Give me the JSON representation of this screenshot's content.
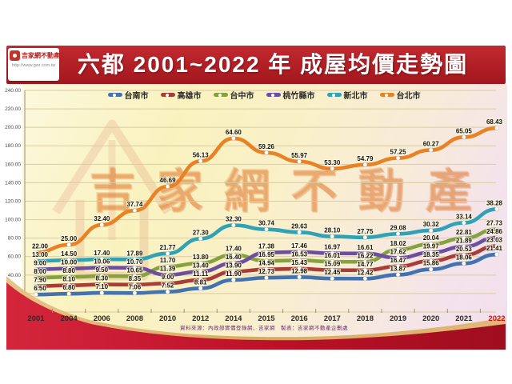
{
  "logo": {
    "brand": "吉家網不動產",
    "url": "http://www.gwr.com.tw"
  },
  "header": {
    "title": "六都 2001~2022 年 成屋均價走勢圖"
  },
  "watermark": {
    "text": "吉家網不動產"
  },
  "footer": {
    "source": "資料來源：內政部實價登錄網、吉家網　製表：吉家網不動產企劃處"
  },
  "chart_data": {
    "type": "line",
    "title": "六都 2001~2022 年 成屋均價走勢圖",
    "xlabel": "",
    "ylabel": "",
    "x": [
      2001,
      2004,
      2006,
      2008,
      2010,
      2012,
      2014,
      2015,
      2016,
      2017,
      2018,
      2019,
      2020,
      2021,
      2022
    ],
    "x_highlight": 2022,
    "x_highlight_color": "#CC1111",
    "y_axis": {
      "min": 0,
      "max": 240,
      "step": 20,
      "tick_format_decimals": 2
    },
    "grid": true,
    "legend_position": "top",
    "marker": "white-dot",
    "series": [
      {
        "name": "台南市",
        "color": "#4273B0",
        "values": [
          6.5,
          6.8,
          7.1,
          7.06,
          7.52,
          8.81,
          11.9,
          12.73,
          12.98,
          12.45,
          12.42,
          13.87,
          15.86,
          18.06,
          21.41
        ]
      },
      {
        "name": "高雄市",
        "color": "#A93C34",
        "values": [
          7.9,
          8.1,
          8.3,
          8.35,
          9.0,
          11.11,
          13.9,
          14.94,
          15.43,
          15.09,
          14.77,
          16.47,
          18.35,
          20.53,
          23.03
        ]
      },
      {
        "name": "台中市",
        "color": "#86A23F",
        "values": [
          8.0,
          8.8,
          9.5,
          10.65,
          11.7,
          13.8,
          17.4,
          16.95,
          16.53,
          16.01,
          16.22,
          18.02,
          20.04,
          22.81,
          27.73
        ]
      },
      {
        "name": "桃竹縣市",
        "color": "#6C4F9E",
        "values": [
          9.0,
          10.0,
          10.06,
          10.7,
          11.39,
          13.4,
          16.4,
          17.38,
          17.46,
          16.97,
          16.61,
          17.62,
          19.97,
          21.89,
          24.86
        ]
      },
      {
        "name": "新北市",
        "color": "#2FA3B5",
        "values": [
          13.0,
          14.5,
          17.4,
          17.89,
          21.77,
          27.3,
          32.3,
          30.74,
          29.63,
          28.1,
          27.75,
          29.08,
          30.32,
          33.14,
          38.28
        ]
      },
      {
        "name": "台北市",
        "color": "#E98125",
        "values": [
          22.0,
          25.0,
          32.4,
          37.74,
          46.69,
          56.13,
          64.6,
          59.26,
          55.97,
          53.3,
          54.79,
          57.25,
          60.27,
          65.05,
          68.43
        ]
      }
    ]
  }
}
